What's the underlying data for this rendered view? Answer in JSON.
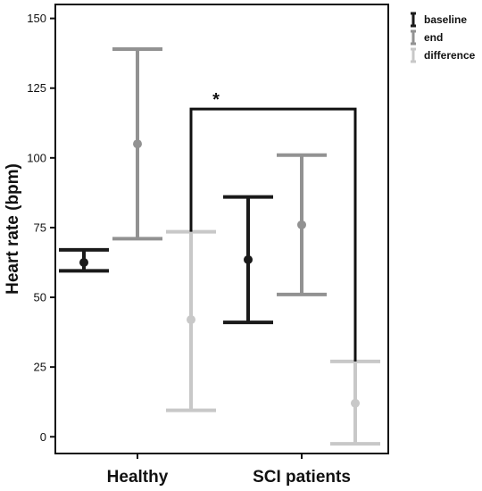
{
  "chart_data": {
    "type": "errorbar",
    "title": "",
    "xlabel": "",
    "ylabel": "Heart rate (bpm)",
    "ylim": [
      -6,
      155
    ],
    "yticks": [
      0,
      25,
      50,
      75,
      100,
      125,
      150
    ],
    "categories": [
      "Healthy",
      "SCI patients"
    ],
    "series": [
      {
        "name": "baseline",
        "color": "#1a1a1a",
        "mean": [
          62.5,
          63.5
        ],
        "low": [
          59.5,
          41.0
        ],
        "high": [
          67.0,
          86.0
        ]
      },
      {
        "name": "end",
        "color": "#929292",
        "mean": [
          105.0,
          76.0
        ],
        "low": [
          71.0,
          51.0
        ],
        "high": [
          139.0,
          101.0
        ]
      },
      {
        "name": "difference",
        "color": "#c8c8c8",
        "mean": [
          42.0,
          12.0
        ],
        "low": [
          9.5,
          -2.5
        ],
        "high": [
          73.5,
          27.0
        ]
      }
    ],
    "significance": {
      "label": "*",
      "from": {
        "series": 2,
        "category": 0
      },
      "to": {
        "series": 2,
        "category": 1
      },
      "y": 117.5
    },
    "legend_position": "top-right",
    "grid": false
  }
}
